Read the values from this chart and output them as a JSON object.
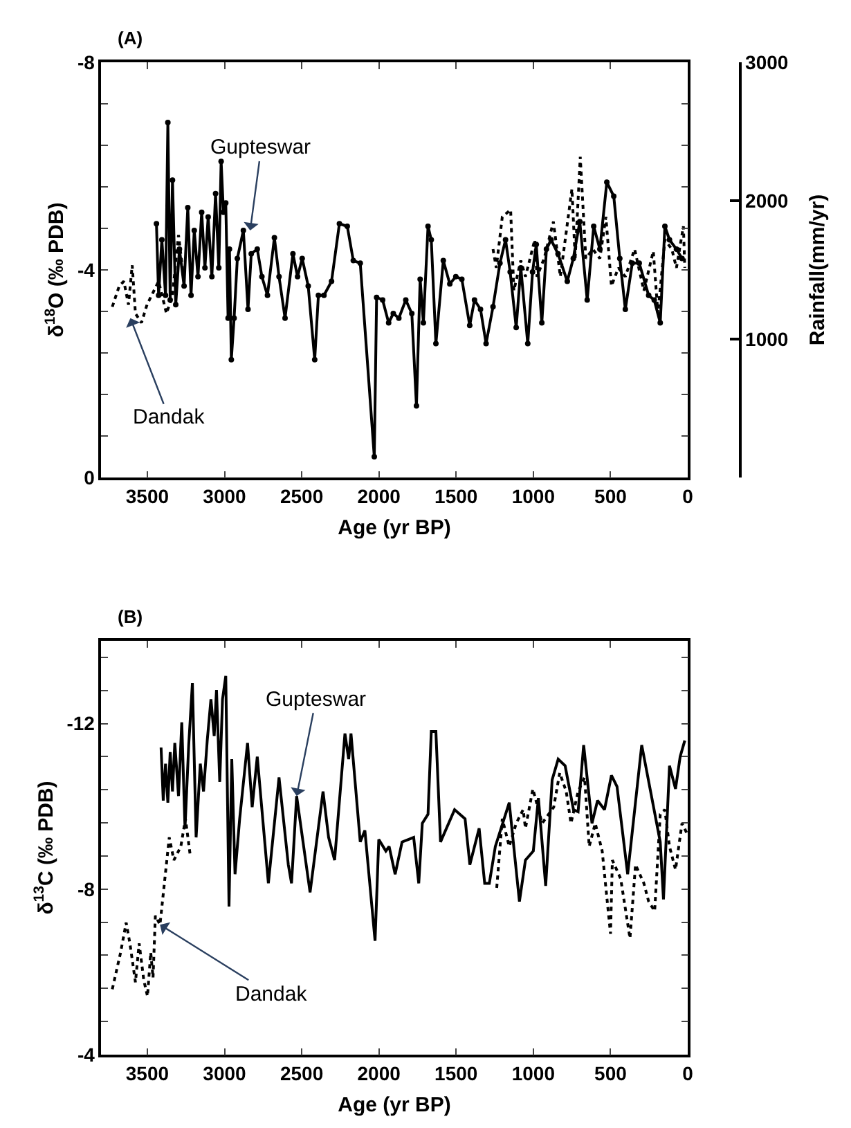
{
  "chart_data": [
    {
      "type": "line",
      "title": "(A)",
      "xlabel": "Age (yr BP)",
      "ylabel": "δ$^{18}$O (‰ PDB)",
      "y2label": "Rainfall(mm/yr)",
      "xlim": [
        3800,
        0
      ],
      "xticks": [
        3500,
        3000,
        2500,
        2000,
        1500,
        1000,
        500,
        0
      ],
      "ylim": [
        0,
        -8
      ],
      "yticks": [
        -8,
        {
          "value": -7.2,
          "label": null
        },
        {
          "value": -6.4,
          "label": null
        },
        {
          "value": -5.6,
          "label": null
        },
        {
          "value": -4.8,
          "label": null
        },
        -4,
        {
          "value": -3.2,
          "label": null
        },
        {
          "value": -2.4,
          "label": null
        },
        {
          "value": -1.6,
          "label": null
        },
        {
          "value": -0.8,
          "label": null
        },
        0
      ],
      "y2lim": [
        0,
        3000
      ],
      "y2ticks": [
        1000,
        2000,
        3000
      ],
      "annotations": [
        {
          "text": "Gupteswar",
          "x": 2834,
          "y": -4.76
        },
        {
          "text": "Dandak",
          "x": 3610,
          "y": -3.07
        }
      ],
      "series": [
        {
          "color": "#000000",
          "line_style": "solid",
          "marker": "circle",
          "x": [
            3441,
            3427,
            3406,
            3382,
            3367,
            3352,
            3337,
            3316,
            3292,
            3262,
            3238,
            3217,
            3196,
            3172,
            3148,
            3127,
            3106,
            3082,
            3058,
            3037,
            3022,
            3007,
            2992,
            2977,
            2968,
            2956,
            2938,
            2917,
            2878,
            2848,
            2827,
            2788,
            2758,
            2722,
            2677,
            2647,
            2608,
            2557,
            2527,
            2497,
            2458,
            2416,
            2392,
            2356,
            2307,
            2256,
            2205,
            2166,
            2121,
            2030,
            2015,
            1976,
            1937,
            1907,
            1871,
            1826,
            1787,
            1757,
            1733,
            1712,
            1682,
            1661,
            1631,
            1583,
            1541,
            1502,
            1463,
            1412,
            1381,
            1342,
            1306,
            1261,
            1216,
            1180,
            1150,
            1111,
            1081,
            1036,
            1005,
            981,
            945,
            915,
            885,
            840,
            780,
            741,
            699,
            651,
            609,
            569,
            524,
            479,
            440,
            404,
            359,
            314,
            253,
            217,
            178,
            148,
            118,
            73,
            37
          ],
          "values": [
            -4.89,
            -3.51,
            -4.58,
            -3.51,
            -6.84,
            -3.42,
            -5.73,
            -3.33,
            -4.4,
            -3.69,
            -5.2,
            -3.51,
            -4.76,
            -3.87,
            -5.11,
            -4.04,
            -5.02,
            -3.87,
            -5.47,
            -4.04,
            -6.09,
            -5.11,
            -5.29,
            -3.07,
            -4.4,
            -2.27,
            -3.07,
            -4.22,
            -4.76,
            -3.24,
            -4.31,
            -4.4,
            -3.87,
            -3.51,
            -4.62,
            -3.87,
            -3.07,
            -4.31,
            -3.87,
            -4.22,
            -3.69,
            -2.27,
            -3.51,
            -3.51,
            -3.78,
            -4.89,
            -4.84,
            -4.18,
            -4.13,
            -0.4,
            -3.47,
            -3.42,
            -2.98,
            -3.16,
            -3.07,
            -3.42,
            -3.16,
            -1.38,
            -3.82,
            -2.98,
            -4.84,
            -4.58,
            -2.58,
            -4.18,
            -3.73,
            -3.87,
            -3.82,
            -2.93,
            -3.42,
            -3.24,
            -2.58,
            -3.29,
            -4.13,
            -4.58,
            -3.96,
            -2.89,
            -4.04,
            -2.58,
            -3.96,
            -4.49,
            -2.98,
            -4.4,
            -4.58,
            -4.31,
            -3.78,
            -4.22,
            -4.93,
            -3.42,
            -4.84,
            -4.4,
            -5.69,
            -5.42,
            -4.22,
            -3.24,
            -4.13,
            -4.13,
            -3.51,
            -3.42,
            -2.98,
            -4.84,
            -4.58,
            -4.4,
            -4.22
          ]
        },
        {
          "color": "#000000",
          "line_style": "dotted",
          "marker": "none",
          "x": [
            3727,
            3682,
            3652,
            3622,
            3598,
            3577,
            3538,
            3502,
            3457,
            3427,
            3376,
            3337,
            3298,
            3262,
            2000,
            1261,
            1240,
            1201,
            1147,
            1126,
            1081,
            1051,
            1021,
            991,
            976,
            930,
            870,
            825,
            750,
            729,
            696,
            660,
            615,
            569,
            530,
            494,
            449,
            404,
            344,
            284,
            223,
            193,
            148,
            103,
            73,
            28,
            19
          ],
          "values": [
            -3.29,
            -3.69,
            -3.78,
            -3.33,
            -4.09,
            -3.16,
            -2.98,
            -3.33,
            -3.6,
            -3.78,
            -3.16,
            -3.51,
            -4.67,
            -3.78,
            null,
            -4.4,
            -4.04,
            -5.02,
            -5.16,
            -3.6,
            -4.18,
            -3.87,
            -4.22,
            -4.58,
            -3.87,
            -4.22,
            -4.93,
            -3.87,
            -5.56,
            -4.22,
            -6.18,
            -4.22,
            -4.4,
            -4.22,
            -5.02,
            -3.69,
            -4.04,
            -3.87,
            -4.4,
            -3.6,
            -4.36,
            -3.16,
            -4.58,
            -4.4,
            -4.04,
            -4.84,
            -4.04
          ]
        }
      ]
    },
    {
      "type": "line",
      "title": "(B)",
      "xlabel": "Age (yr BP)",
      "ylabel": "δ$^{13}$C (‰ PDB)",
      "xlim": [
        3800,
        0
      ],
      "xticks": [
        3500,
        3000,
        2500,
        2000,
        1500,
        1000,
        500,
        0
      ],
      "ylim": [
        -4,
        -14
      ],
      "yticks": [
        {
          "value": -13.6,
          "label": null
        },
        {
          "value": -12.8,
          "label": null
        },
        -12,
        {
          "value": -11.2,
          "label": null
        },
        {
          "value": -10.4,
          "label": null
        },
        {
          "value": -9.6,
          "label": null
        },
        {
          "value": -8.8,
          "label": null
        },
        -8,
        {
          "value": -7.2,
          "label": null
        },
        {
          "value": -6.4,
          "label": null
        },
        {
          "value": -5.6,
          "label": null
        },
        {
          "value": -4.8,
          "label": null
        },
        -4
      ],
      "annotations": [
        {
          "text": "Gupteswar",
          "x": 2533,
          "y": -10.25
        },
        {
          "text": "Dandak",
          "x": 3418,
          "y": -7.14
        }
      ],
      "series": [
        {
          "color": "#000000",
          "line_style": "solid",
          "marker": "none",
          "x": [
            3411,
            3397,
            3382,
            3367,
            3352,
            3337,
            3322,
            3298,
            3277,
            3256,
            3232,
            3208,
            3184,
            3157,
            3136,
            3112,
            3088,
            3067,
            3052,
            3031,
            3013,
            2992,
            2971,
            2953,
            2932,
            2902,
            2851,
            2821,
            2788,
            2716,
            2647,
            2587,
            2566,
            2533,
            2446,
            2362,
            2326,
            2287,
            2220,
            2196,
            2181,
            2121,
            2091,
            2025,
            2001,
            1955,
            1934,
            1895,
            1850,
            1775,
            1742,
            1719,
            1682,
            1661,
            1631,
            1601,
            1510,
            1442,
            1411,
            1351,
            1315,
            1285,
            1246,
            1156,
            1090,
            1051,
            1000,
            967,
            920,
            878,
            839,
            794,
            740,
            710,
            674,
            620,
            584,
            539,
            494,
            458,
            389,
            298,
            178,
            157,
            118,
            79,
            49,
            19
          ],
          "values": [
            -11.42,
            -10.14,
            -11.03,
            -10.09,
            -11.31,
            -10.36,
            -11.53,
            -10.25,
            -12.03,
            -9.47,
            -11.48,
            -12.98,
            -9.25,
            -11.03,
            -10.36,
            -11.59,
            -12.59,
            -11.7,
            -12.81,
            -10.59,
            -12.59,
            -13.15,
            -7.58,
            -11.14,
            -8.36,
            -9.7,
            -11.53,
            -9.98,
            -11.2,
            -8.14,
            -10.7,
            -8.59,
            -8.14,
            -10.25,
            -7.92,
            -10.36,
            -9.25,
            -8.7,
            -11.76,
            -11.14,
            -11.76,
            -9.14,
            -9.42,
            -6.75,
            -9.2,
            -8.92,
            -9.03,
            -8.36,
            -9.14,
            -9.25,
            -8.14,
            -9.59,
            -9.81,
            -11.81,
            -11.81,
            -9.14,
            -9.92,
            -9.7,
            -8.59,
            -9.47,
            -8.14,
            -8.14,
            -9.03,
            -10.09,
            -7.7,
            -8.7,
            -8.92,
            -10.2,
            -8.08,
            -10.64,
            -11.14,
            -10.98,
            -9.92,
            -9.87,
            -11.48,
            -9.59,
            -10.14,
            -9.92,
            -10.75,
            -10.48,
            -8.36,
            -11.48,
            -9.14,
            -7.75,
            -10.98,
            -10.42,
            -11.2,
            -11.59
          ]
        },
        {
          "color": "#000000",
          "line_style": "dotted",
          "marker": "none",
          "x": [
            3727,
            3673,
            3637,
            3613,
            3577,
            3553,
            3523,
            3499,
            3478,
            3463,
            3448,
            3418,
            3358,
            3328,
            3283,
            3253,
            3222,
            2000,
            1237,
            1201,
            1156,
            1111,
            1066,
            1051,
            1003,
            943,
            868,
            829,
            787,
            756,
            710,
            668,
            638,
            599,
            554,
            500,
            488,
            434,
            374,
            338,
            284,
            253,
            214,
            178,
            148,
            118,
            79,
            37,
            7
          ],
          "values": [
            -5.58,
            -6.47,
            -7.19,
            -6.69,
            -5.75,
            -6.69,
            -5.8,
            -5.41,
            -6.47,
            -5.86,
            -7.36,
            -7.14,
            -9.25,
            -8.7,
            -9.03,
            -9.7,
            -8.81,
            null,
            -8.03,
            -9.7,
            -9.03,
            -9.59,
            -9.92,
            -9.47,
            -10.42,
            -9.59,
            -9.98,
            -10.81,
            -10.36,
            -9.59,
            -10.36,
            -10.7,
            -9.03,
            -9.59,
            -8.92,
            -6.92,
            -8.7,
            -8.25,
            -6.81,
            -8.59,
            -8.14,
            -7.7,
            -7.47,
            -9.81,
            -9.92,
            -9.03,
            -8.47,
            -9.59,
            -9.36
          ]
        }
      ]
    }
  ]
}
